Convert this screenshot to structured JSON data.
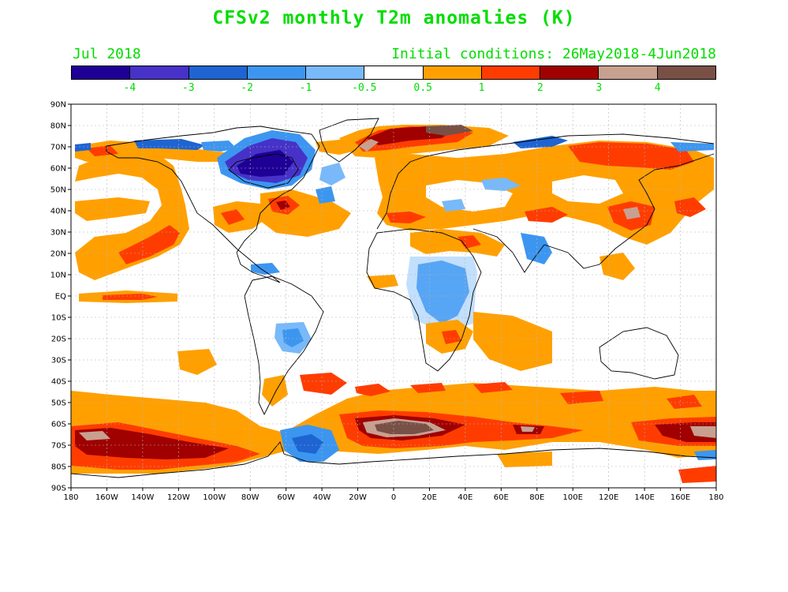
{
  "title": "CFSv2 monthly T2m anomalies (K)",
  "month": "Jul 2018",
  "initial_conditions": "Initial conditions: 26May2018-4Jun2018",
  "legend": {
    "colors": [
      "#1e0096",
      "#4632c8",
      "#1e64d2",
      "#3c96f0",
      "#78b9fa",
      "#ffffff",
      "#ffa000",
      "#ff3c00",
      "#a00000",
      "#c8a090",
      "#785046"
    ],
    "labels": [
      "-4",
      "-3",
      "-2",
      "-1",
      "-0.5",
      "0.5",
      "1",
      "2",
      "3",
      "4"
    ]
  },
  "lat_labels": [
    "90N",
    "80N",
    "70N",
    "60N",
    "50N",
    "40N",
    "30N",
    "20N",
    "10N",
    "EQ",
    "10S",
    "20S",
    "30S",
    "40S",
    "50S",
    "60S",
    "70S",
    "80S",
    "90S"
  ],
  "lon_labels": [
    "180",
    "160W",
    "140W",
    "120W",
    "100W",
    "80W",
    "60W",
    "40W",
    "20W",
    "0",
    "20E",
    "40E",
    "60E",
    "80E",
    "100E",
    "120E",
    "140E",
    "160E",
    "180"
  ]
}
